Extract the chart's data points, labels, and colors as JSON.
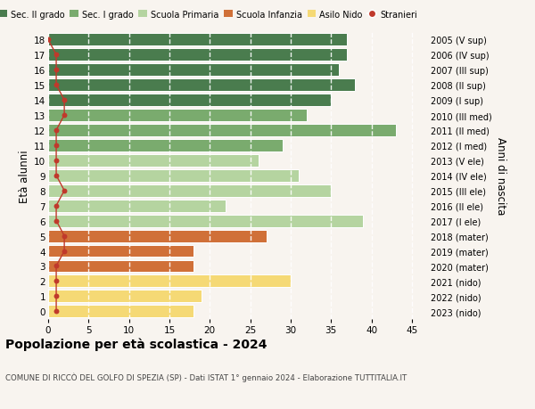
{
  "ages": [
    18,
    17,
    16,
    15,
    14,
    13,
    12,
    11,
    10,
    9,
    8,
    7,
    6,
    5,
    4,
    3,
    2,
    1,
    0
  ],
  "bar_values": [
    37,
    37,
    36,
    38,
    35,
    32,
    43,
    29,
    26,
    31,
    35,
    22,
    39,
    27,
    18,
    18,
    30,
    19,
    18
  ],
  "stranieri_values": [
    0,
    1,
    1,
    1,
    2,
    2,
    1,
    1,
    1,
    1,
    2,
    1,
    1,
    2,
    2,
    1,
    1,
    1,
    1
  ],
  "right_labels": [
    "2005 (V sup)",
    "2006 (IV sup)",
    "2007 (III sup)",
    "2008 (II sup)",
    "2009 (I sup)",
    "2010 (III med)",
    "2011 (II med)",
    "2012 (I med)",
    "2013 (V ele)",
    "2014 (IV ele)",
    "2015 (III ele)",
    "2016 (II ele)",
    "2017 (I ele)",
    "2018 (mater)",
    "2019 (mater)",
    "2020 (mater)",
    "2021 (nido)",
    "2022 (nido)",
    "2023 (nido)"
  ],
  "bar_colors": [
    "#4a7c4e",
    "#4a7c4e",
    "#4a7c4e",
    "#4a7c4e",
    "#4a7c4e",
    "#7aab6e",
    "#7aab6e",
    "#7aab6e",
    "#b5d4a0",
    "#b5d4a0",
    "#b5d4a0",
    "#b5d4a0",
    "#b5d4a0",
    "#d07038",
    "#d07038",
    "#d07038",
    "#f5d975",
    "#f5d975",
    "#f5d975"
  ],
  "legend_labels": [
    "Sec. II grado",
    "Sec. I grado",
    "Scuola Primaria",
    "Scuola Infanzia",
    "Asilo Nido",
    "Stranieri"
  ],
  "legend_colors": [
    "#4a7c4e",
    "#7aab6e",
    "#b5d4a0",
    "#d07038",
    "#f5d975",
    "#c0392b"
  ],
  "stranieri_color": "#c0392b",
  "stranieri_line_color": "#c0392b",
  "ylabel": "Età alunni",
  "right_ylabel": "Anni di nascita",
  "title": "Popolazione per età scolastica - 2024",
  "subtitle": "COMUNE DI RICCÒ DEL GOLFO DI SPEZIA (SP) - Dati ISTAT 1° gennaio 2024 - Elaborazione TUTTITALIA.IT",
  "xlim": [
    0,
    47
  ],
  "xticks": [
    0,
    5,
    10,
    15,
    20,
    25,
    30,
    35,
    40,
    45
  ],
  "bg_color": "#f8f4ef",
  "grid_color": "#ffffff",
  "bar_height": 0.82
}
